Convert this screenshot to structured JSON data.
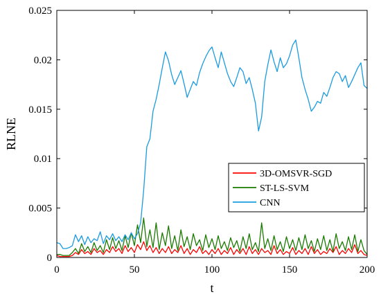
{
  "chart_data": {
    "type": "line",
    "xlabel": "t",
    "ylabel": "RLNE",
    "xlim": [
      0,
      200
    ],
    "ylim": [
      0,
      0.025
    ],
    "x_ticks": [
      "0",
      "50",
      "100",
      "150",
      "200"
    ],
    "y_ticks": [
      "0",
      "0.005",
      "0.01",
      "0.015",
      "0.02",
      "0.025"
    ],
    "grid": false,
    "legend_position": "bottom-right",
    "series": [
      {
        "name": "3D-OMSVR-SGD",
        "color": "#ff0000",
        "x": [
          0,
          2,
          4,
          6,
          8,
          10,
          12,
          14,
          16,
          18,
          20,
          22,
          24,
          26,
          28,
          30,
          32,
          34,
          36,
          38,
          40,
          42,
          44,
          46,
          48,
          50,
          52,
          54,
          56,
          58,
          60,
          62,
          64,
          66,
          68,
          70,
          72,
          74,
          76,
          78,
          80,
          82,
          84,
          86,
          88,
          90,
          92,
          94,
          96,
          98,
          100,
          102,
          104,
          106,
          108,
          110,
          112,
          114,
          116,
          118,
          120,
          122,
          124,
          126,
          128,
          130,
          132,
          134,
          136,
          138,
          140,
          142,
          144,
          146,
          148,
          150,
          152,
          154,
          156,
          158,
          160,
          162,
          164,
          166,
          168,
          170,
          172,
          174,
          176,
          178,
          180,
          182,
          184,
          186,
          188,
          190,
          192,
          194,
          196,
          198,
          200
        ],
        "y": [
          0.0002,
          0.0001,
          0.0001,
          0.0001,
          0.0001,
          0.0002,
          0.0005,
          0.0003,
          0.0008,
          0.0004,
          0.0006,
          0.0003,
          0.0009,
          0.0005,
          0.0007,
          0.0003,
          0.0008,
          0.0005,
          0.0011,
          0.0006,
          0.0009,
          0.0004,
          0.0012,
          0.0006,
          0.001,
          0.0005,
          0.0013,
          0.0008,
          0.0016,
          0.0007,
          0.0012,
          0.0005,
          0.001,
          0.0004,
          0.0009,
          0.0005,
          0.0011,
          0.0004,
          0.0008,
          0.0005,
          0.0012,
          0.0004,
          0.0009,
          0.0003,
          0.0008,
          0.0005,
          0.0011,
          0.0004,
          0.0007,
          0.0003,
          0.0008,
          0.0004,
          0.0009,
          0.0003,
          0.0007,
          0.0004,
          0.001,
          0.0003,
          0.0008,
          0.0004,
          0.0009,
          0.0003,
          0.0011,
          0.0004,
          0.0008,
          0.0003,
          0.0009,
          0.0005,
          0.0007,
          0.0003,
          0.0012,
          0.0004,
          0.0008,
          0.0003,
          0.0006,
          0.0004,
          0.001,
          0.0003,
          0.0007,
          0.0004,
          0.0009,
          0.0003,
          0.0011,
          0.0004,
          0.0008,
          0.0003,
          0.0006,
          0.0004,
          0.0009,
          0.0005,
          0.0011,
          0.0003,
          0.0007,
          0.0004,
          0.0009,
          0.0005,
          0.0013,
          0.0004,
          0.0007,
          0.0003,
          0.0002
        ]
      },
      {
        "name": "ST-LS-SVM",
        "color": "#1a7a00",
        "x": [
          0,
          2,
          4,
          6,
          8,
          10,
          12,
          14,
          16,
          18,
          20,
          22,
          24,
          26,
          28,
          30,
          32,
          34,
          36,
          38,
          40,
          42,
          44,
          46,
          48,
          50,
          52,
          54,
          56,
          58,
          60,
          62,
          64,
          66,
          68,
          70,
          72,
          74,
          76,
          78,
          80,
          82,
          84,
          86,
          88,
          90,
          92,
          94,
          96,
          98,
          100,
          102,
          104,
          106,
          108,
          110,
          112,
          114,
          116,
          118,
          120,
          122,
          124,
          126,
          128,
          130,
          132,
          134,
          136,
          138,
          140,
          142,
          144,
          146,
          148,
          150,
          152,
          154,
          156,
          158,
          160,
          162,
          164,
          166,
          168,
          170,
          172,
          174,
          176,
          178,
          180,
          182,
          184,
          186,
          188,
          190,
          192,
          194,
          196,
          198,
          200
        ],
        "y": [
          0.0003,
          0.0003,
          0.0002,
          0.0002,
          0.0002,
          0.0005,
          0.0009,
          0.0004,
          0.0014,
          0.0006,
          0.0011,
          0.0005,
          0.0015,
          0.0007,
          0.0012,
          0.0005,
          0.0018,
          0.0008,
          0.002,
          0.0009,
          0.0017,
          0.0007,
          0.0022,
          0.001,
          0.0025,
          0.0012,
          0.0033,
          0.0015,
          0.004,
          0.0011,
          0.0028,
          0.001,
          0.0035,
          0.0008,
          0.0025,
          0.0012,
          0.0032,
          0.0009,
          0.0022,
          0.0007,
          0.0028,
          0.0011,
          0.0021,
          0.0008,
          0.0024,
          0.0012,
          0.0018,
          0.0007,
          0.0023,
          0.001,
          0.0019,
          0.0008,
          0.0022,
          0.0009,
          0.0016,
          0.0007,
          0.002,
          0.001,
          0.0017,
          0.0006,
          0.0021,
          0.0009,
          0.0024,
          0.0008,
          0.0015,
          0.0006,
          0.0035,
          0.0009,
          0.0019,
          0.0007,
          0.0022,
          0.0008,
          0.0016,
          0.0006,
          0.0021,
          0.0009,
          0.0018,
          0.0007,
          0.002,
          0.0008,
          0.0023,
          0.0009,
          0.0017,
          0.0006,
          0.0019,
          0.0008,
          0.0022,
          0.0007,
          0.0018,
          0.0006,
          0.0024,
          0.0009,
          0.0016,
          0.0007,
          0.0021,
          0.0008,
          0.0023,
          0.0006,
          0.0018,
          0.0007,
          0.0003
        ]
      },
      {
        "name": "CNN",
        "color": "#1a9be0",
        "x": [
          0,
          2,
          4,
          6,
          8,
          10,
          12,
          14,
          16,
          18,
          20,
          22,
          24,
          26,
          28,
          30,
          32,
          34,
          36,
          38,
          40,
          42,
          44,
          46,
          48,
          50,
          52,
          54,
          56,
          58,
          60,
          62,
          64,
          66,
          68,
          70,
          72,
          74,
          76,
          78,
          80,
          82,
          84,
          86,
          88,
          90,
          92,
          94,
          96,
          98,
          100,
          102,
          104,
          106,
          108,
          110,
          112,
          114,
          116,
          118,
          120,
          122,
          124,
          126,
          128,
          130,
          132,
          134,
          136,
          138,
          140,
          142,
          144,
          146,
          148,
          150,
          152,
          154,
          156,
          158,
          160,
          162,
          164,
          166,
          168,
          170,
          172,
          174,
          176,
          178,
          180,
          182,
          184,
          186,
          188,
          190,
          192,
          194,
          196,
          198,
          200
        ],
        "y": [
          0.0015,
          0.0014,
          0.0009,
          0.0009,
          0.001,
          0.0012,
          0.0023,
          0.0016,
          0.0022,
          0.0013,
          0.0021,
          0.0015,
          0.0019,
          0.0017,
          0.0026,
          0.0014,
          0.0022,
          0.0018,
          0.0024,
          0.0017,
          0.0021,
          0.0016,
          0.0023,
          0.0018,
          0.0025,
          0.0019,
          0.0024,
          0.0035,
          0.0068,
          0.0112,
          0.012,
          0.0148,
          0.016,
          0.0175,
          0.0192,
          0.0208,
          0.0199,
          0.0185,
          0.0175,
          0.0182,
          0.0189,
          0.0176,
          0.0162,
          0.017,
          0.0178,
          0.0174,
          0.0187,
          0.0196,
          0.0203,
          0.0209,
          0.0213,
          0.0202,
          0.0192,
          0.0208,
          0.0197,
          0.0186,
          0.0178,
          0.0173,
          0.0182,
          0.0192,
          0.0188,
          0.0176,
          0.0182,
          0.017,
          0.0156,
          0.0128,
          0.0142,
          0.0178,
          0.0195,
          0.021,
          0.0198,
          0.0188,
          0.0202,
          0.0192,
          0.0196,
          0.0204,
          0.0215,
          0.022,
          0.0202,
          0.0182,
          0.017,
          0.016,
          0.0148,
          0.0152,
          0.0158,
          0.0156,
          0.0167,
          0.0163,
          0.0172,
          0.0182,
          0.0188,
          0.0186,
          0.0178,
          0.0184,
          0.0172,
          0.0178,
          0.0185,
          0.0192,
          0.0197,
          0.0174,
          0.0171
        ]
      }
    ]
  }
}
